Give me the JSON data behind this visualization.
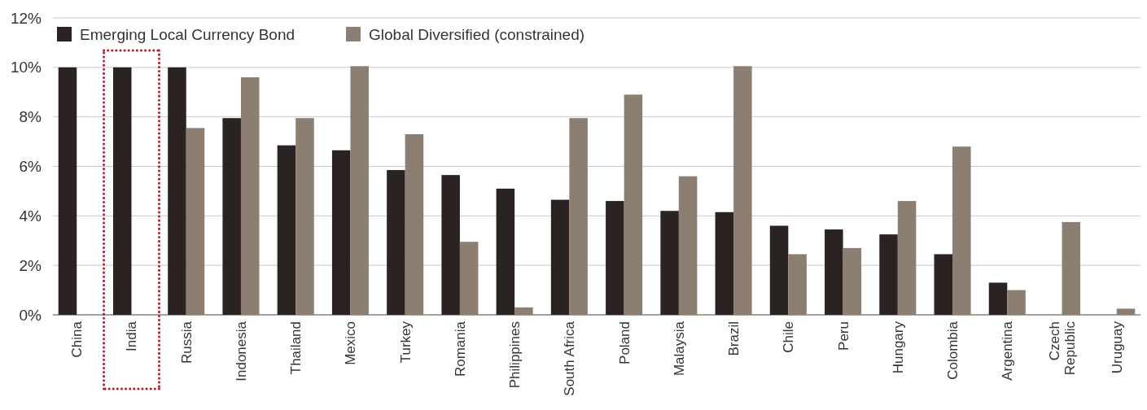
{
  "chart_data": {
    "type": "bar",
    "categories": [
      "China",
      "India",
      "Russia",
      "Indonesia",
      "Thailand",
      "Mexico",
      "Turkey",
      "Romania",
      "Philippines",
      "South Africa",
      "Poland",
      "Malaysia",
      "Brazil",
      "Chile",
      "Peru",
      "Hungary",
      "Colombia",
      "Argentina",
      "Czech Republic",
      "Uruguay"
    ],
    "series": [
      {
        "name": "Emerging Local Currency Bond",
        "color": "#2b2222",
        "values": [
          10,
          10,
          10,
          7.95,
          6.85,
          6.65,
          5.85,
          5.65,
          5.1,
          4.65,
          4.6,
          4.2,
          4.15,
          3.6,
          3.45,
          3.25,
          2.45,
          1.3,
          null,
          null
        ]
      },
      {
        "name": "Global Diversified (constrained)",
        "color": "#8c7f72",
        "values": [
          null,
          null,
          7.55,
          9.6,
          7.95,
          10.05,
          7.3,
          2.95,
          0.3,
          7.95,
          8.9,
          5.6,
          10.05,
          2.45,
          2.7,
          4.6,
          6.8,
          1.0,
          3.75,
          0.25
        ]
      }
    ],
    "ylim": [
      0,
      12
    ],
    "yticks": [
      {
        "value": 0,
        "label": "0%"
      },
      {
        "value": 2,
        "label": "2%"
      },
      {
        "value": 4,
        "label": "4%"
      },
      {
        "value": 6,
        "label": "6%"
      },
      {
        "value": 8,
        "label": "8%"
      },
      {
        "value": 10,
        "label": "10%"
      },
      {
        "value": 12,
        "label": "12%"
      }
    ],
    "grid": "y",
    "legend": "top left"
  }
}
